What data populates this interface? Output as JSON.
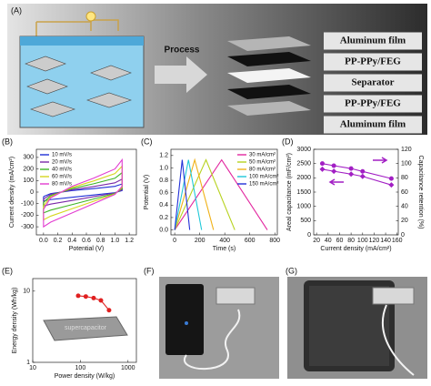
{
  "panels": {
    "a": {
      "label": "(A)",
      "process": "Process",
      "layers": [
        "Aluminum film",
        "PP-PPy/FEG",
        "Separator",
        "PP-PPy/FEG",
        "Aluminum film"
      ]
    },
    "e": {
      "device_text": "supercapacitor"
    },
    "f": {
      "label": "(F)"
    },
    "g": {
      "label": "(G)"
    }
  },
  "chart_data": [
    {
      "type": "line",
      "panel_label": "(B)",
      "x_label": "Potential (V)",
      "y_label": "Current density (mA/cm²)",
      "x": [
        0,
        0.1,
        0.4,
        0.7,
        1.0,
        1.1,
        1.1,
        1.0,
        0.7,
        0.4,
        0.1,
        0,
        0
      ],
      "series": [
        {
          "name": "10 mV/s",
          "color": "#1f2fd6",
          "values": [
            -38,
            -13,
            13,
            30,
            50,
            70,
            13,
            -5,
            -25,
            -45,
            -65,
            -75,
            -38
          ]
        },
        {
          "name": "20 mV/s",
          "color": "#7a2aa8",
          "values": [
            -60,
            -20,
            20,
            48,
            80,
            112,
            20,
            -8,
            -40,
            -72,
            -104,
            -120,
            -60
          ]
        },
        {
          "name": "40 mV/s",
          "color": "#3fb526",
          "values": [
            -90,
            -30,
            30,
            72,
            120,
            168,
            30,
            -12,
            -60,
            -108,
            -156,
            -180,
            -90
          ]
        },
        {
          "name": "60 mV/s",
          "color": "#d6d61e",
          "values": [
            -120,
            -40,
            40,
            96,
            160,
            224,
            40,
            -16,
            -80,
            -144,
            -208,
            -240,
            -120
          ]
        },
        {
          "name": "80 mV/s",
          "color": "#e23bd0",
          "values": [
            -150,
            -50,
            50,
            120,
            200,
            280,
            50,
            -20,
            -100,
            -180,
            -260,
            -300,
            -150
          ]
        }
      ],
      "xlim": [
        -0.1,
        1.3
      ],
      "xticks": [
        {
          "value": 0,
          "label": "0.0"
        },
        0.2,
        0.4,
        0.6,
        0.8,
        {
          "value": 1,
          "label": "1.0"
        },
        1.2
      ],
      "ylim": [
        -370,
        370
      ],
      "yticks": [
        -300,
        -200,
        -100,
        0,
        100,
        200,
        300
      ],
      "legend": "upper left"
    },
    {
      "type": "line",
      "panel_label": "(C)",
      "x_label": "Time (s)",
      "y_label": "Potential (V)",
      "series": [
        {
          "name": "30 mA/cm²",
          "color": "#e2269f",
          "x": [
            0,
            375,
            740
          ],
          "values": [
            0,
            1.13,
            0
          ]
        },
        {
          "name": "50 mA/cm²",
          "color": "#b7d21e",
          "x": [
            0,
            250,
            480
          ],
          "values": [
            0,
            1.13,
            0
          ]
        },
        {
          "name": "80 mA/cm²",
          "color": "#f0b21a",
          "x": [
            0,
            160,
            310
          ],
          "values": [
            0,
            1.13,
            0
          ]
        },
        {
          "name": "100 mA/cm²",
          "color": "#1ec8d8",
          "x": [
            0,
            110,
            215
          ],
          "values": [
            0,
            1.13,
            0
          ]
        },
        {
          "name": "150 mA/cm²",
          "color": "#2230d8",
          "x": [
            0,
            60,
            120
          ],
          "values": [
            0,
            1.13,
            0
          ]
        }
      ],
      "xlim": [
        -30,
        820
      ],
      "xticks": [
        0,
        200,
        400,
        600,
        800
      ],
      "ylim": [
        -0.08,
        1.3
      ],
      "yticks": [
        {
          "value": 0,
          "label": "0.0"
        },
        0.2,
        0.4,
        0.6,
        0.8,
        {
          "value": 1,
          "label": "1.0"
        },
        1.2
      ],
      "legend": "upper right"
    },
    {
      "type": "line",
      "panel_label": "(D)",
      "x_label": "Current density (mA/cm²)",
      "y_label": "Areal capacitance (mF/cm²)",
      "y2_label": "Capacitance retention (%)",
      "x": [
        30,
        50,
        80,
        100,
        150
      ],
      "series": [
        {
          "color": "#a21fc4",
          "marker": "circle",
          "axis": "y2",
          "values": [
            100,
            97,
            93,
            89,
            79
          ]
        },
        {
          "color": "#a21fc4",
          "marker": "diamond",
          "values": [
            2300,
            2230,
            2130,
            2050,
            1750
          ]
        }
      ],
      "xlim": [
        15,
        162
      ],
      "xticks": [
        20,
        40,
        60,
        80,
        100,
        120,
        140,
        160
      ],
      "ylim": [
        0,
        3000
      ],
      "yticks": [
        0,
        500,
        1000,
        1500,
        2000,
        2500,
        3000
      ],
      "y2lim": [
        0,
        120
      ],
      "y2ticks": [
        0,
        20,
        40,
        60,
        80,
        100,
        120
      ]
    },
    {
      "type": "line",
      "panel_label": "(E)",
      "x_label": "Power density (W/kg)",
      "y_label": "Energy density (Wh/kg)",
      "x": [
        90,
        130,
        190,
        270,
        400
      ],
      "series": [
        {
          "color": "#e02020",
          "marker": "circle",
          "values": [
            8.6,
            8.4,
            8.0,
            7.4,
            5.4
          ]
        }
      ],
      "xscale": "log",
      "yscale": "log",
      "xlim": [
        10,
        1500
      ],
      "xticks": [
        10,
        100,
        1000
      ],
      "ylim": [
        1,
        15
      ],
      "yticks": [
        1,
        10
      ]
    }
  ]
}
